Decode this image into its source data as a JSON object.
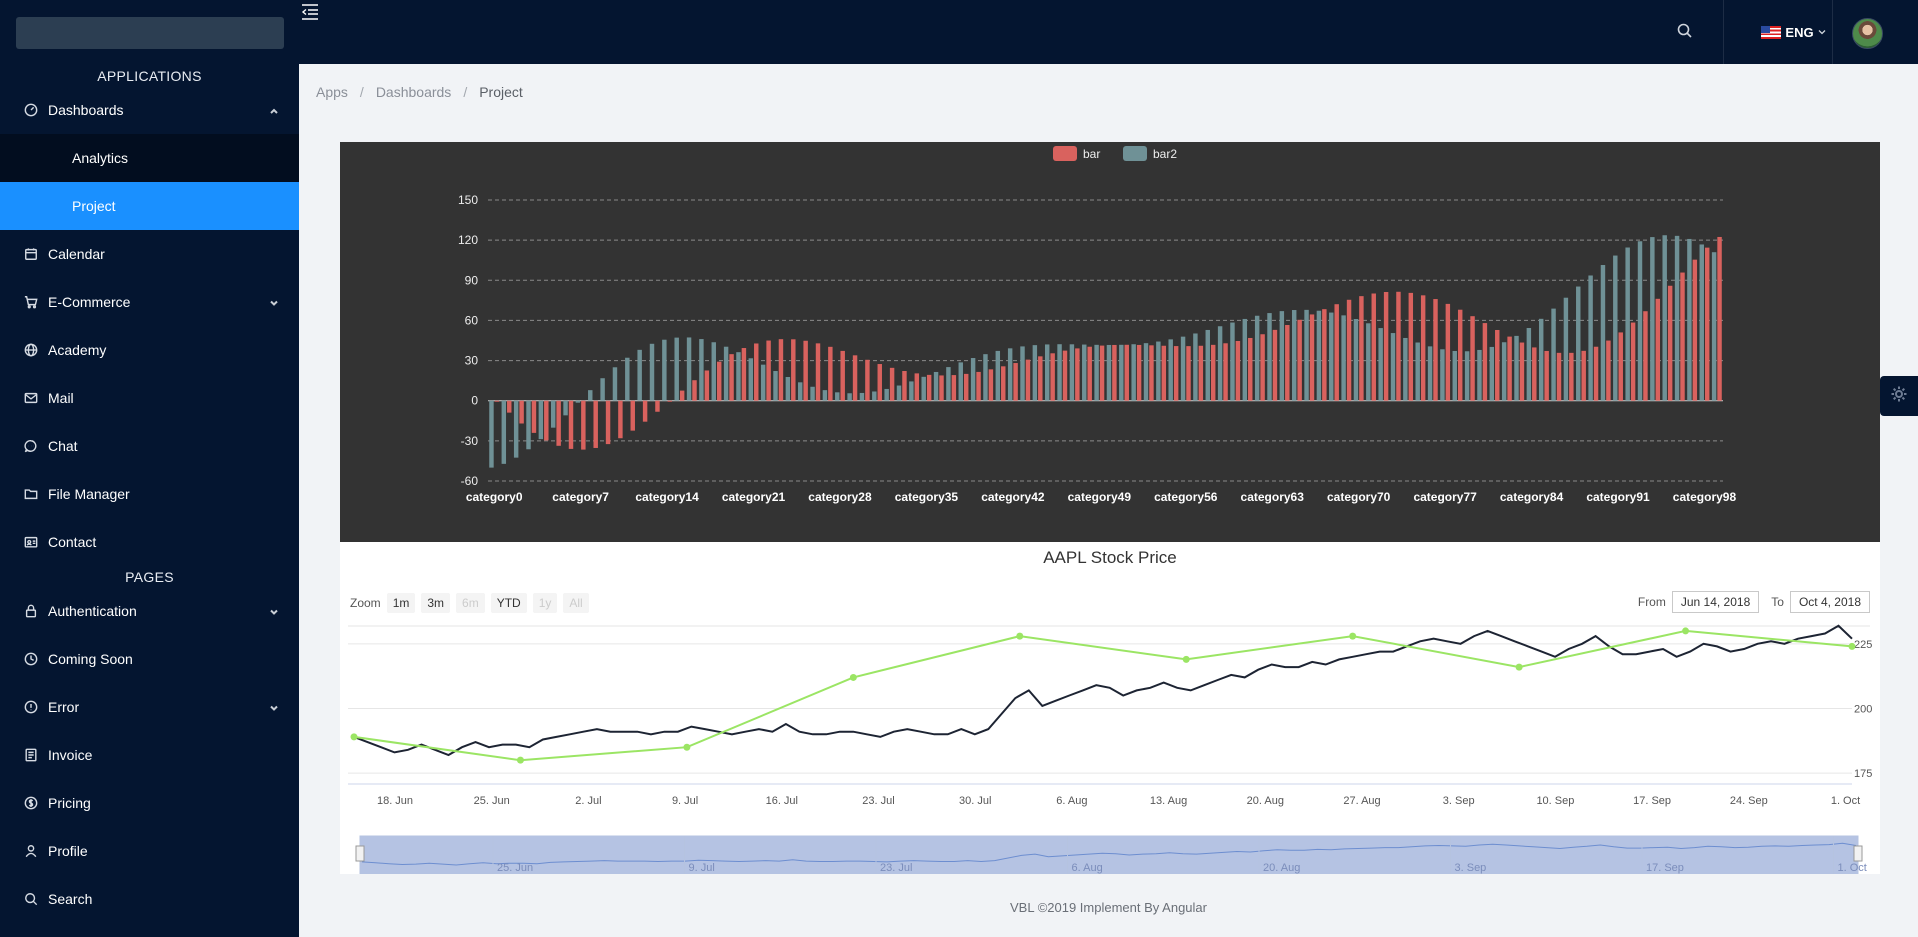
{
  "sidebar": {
    "section_applications": "APPLICATIONS",
    "section_pages": "PAGES",
    "items": [
      {
        "label": "Dashboards",
        "icon": "gauge-icon",
        "expanded": true
      },
      {
        "label": "Analytics",
        "sub": true
      },
      {
        "label": "Project",
        "sub": true,
        "active": true
      },
      {
        "label": "Calendar",
        "icon": "calendar-icon"
      },
      {
        "label": "E-Commerce",
        "icon": "cart-icon",
        "chevron": true
      },
      {
        "label": "Academy",
        "icon": "globe-icon"
      },
      {
        "label": "Mail",
        "icon": "mail-icon"
      },
      {
        "label": "Chat",
        "icon": "chat-icon"
      },
      {
        "label": "File Manager",
        "icon": "folder-icon"
      },
      {
        "label": "Contact",
        "icon": "contact-card-icon"
      },
      {
        "label": "Authentication",
        "icon": "lock-icon",
        "chevron": true
      },
      {
        "label": "Coming Soon",
        "icon": "clock-icon"
      },
      {
        "label": "Error",
        "icon": "alert-circle-icon",
        "chevron": true
      },
      {
        "label": "Invoice",
        "icon": "document-icon"
      },
      {
        "label": "Pricing",
        "icon": "dollar-circle-icon"
      },
      {
        "label": "Profile",
        "icon": "user-icon"
      },
      {
        "label": "Search",
        "icon": "search-icon"
      }
    ]
  },
  "topbar": {
    "language": "ENG",
    "accent": "#041530"
  },
  "breadcrumb": [
    "Apps",
    "Dashboards",
    "Project"
  ],
  "footer": "VBL ©2019 Implement By Angular",
  "colors": {
    "bar": "#d9625e",
    "bar2": "#6f9196",
    "active": "#1a90ff",
    "line": "#9be564"
  },
  "stock": {
    "title": "AAPL Stock Price",
    "zoom_label": "Zoom",
    "zoom_buttons": [
      "1m",
      "3m",
      "6m",
      "YTD",
      "1y",
      "All"
    ],
    "from_label": "From",
    "to_label": "To",
    "from_value": "Jun 14, 2018",
    "to_value": "Oct 4, 2018"
  },
  "chart_data": [
    {
      "type": "bar",
      "legend": [
        "bar",
        "bar2"
      ],
      "ylim": [
        -60,
        150
      ],
      "yticks": [
        150,
        120,
        90,
        60,
        30,
        0,
        -30,
        -60
      ],
      "category_count": 100,
      "category_prefix": "category",
      "xtick_labels": [
        "category0",
        "category7",
        "category14",
        "category21",
        "category28",
        "category35",
        "category42",
        "category49",
        "category56",
        "category63",
        "category70",
        "category77",
        "category84",
        "category91",
        "category98"
      ],
      "series": [
        {
          "name": "bar",
          "formula": "(sin(i/5)*(i/5-10)+i/6)*5"
        },
        {
          "name": "bar2",
          "formula": "(cos(i/5)*(i/5-10)+i/6)*5"
        }
      ]
    },
    {
      "type": "line",
      "title": "AAPL Stock Price",
      "ylim": [
        170,
        235
      ],
      "yticks": [
        175,
        200,
        225
      ],
      "xtick_labels": [
        "18. Jun",
        "25. Jun",
        "2. Jul",
        "9. Jul",
        "16. Jul",
        "23. Jul",
        "30. Jul",
        "6. Aug",
        "13. Aug",
        "20. Aug",
        "27. Aug",
        "3. Sep",
        "10. Sep",
        "17. Sep",
        "24. Sep",
        "1. Oct"
      ],
      "navigator_labels": [
        "25. Jun",
        "9. Jul",
        "23. Jul",
        "6. Aug",
        "20. Aug",
        "3. Sep",
        "17. Sep",
        "1. Oct"
      ],
      "series": [
        {
          "values": [
            189,
            187,
            185,
            183,
            184,
            186,
            184,
            182,
            185,
            187,
            185,
            186,
            186,
            185,
            188,
            189,
            190,
            191,
            192,
            191,
            191,
            191,
            190,
            191,
            191,
            193,
            192,
            191,
            190,
            191,
            192,
            191,
            194,
            191,
            190,
            190,
            191,
            191,
            190,
            189,
            191,
            192,
            191,
            190,
            190,
            192,
            190,
            192,
            198,
            204,
            207,
            201,
            203,
            205,
            207,
            209,
            208,
            205,
            207,
            208,
            210,
            208,
            207,
            209,
            211,
            213,
            212,
            215,
            217,
            216,
            216,
            218,
            217,
            219,
            220,
            221,
            222,
            222,
            224,
            226,
            227,
            226,
            225,
            228,
            230,
            228,
            226,
            224,
            222,
            220,
            223,
            225,
            228,
            224,
            221,
            221,
            222,
            223,
            220,
            222,
            225,
            224,
            222,
            223,
            225,
            226,
            225,
            227,
            228,
            229,
            232,
            227
          ]
        }
      ],
      "trend": [
        189,
        180,
        185,
        212,
        228,
        219,
        228,
        216,
        230,
        224
      ]
    }
  ]
}
